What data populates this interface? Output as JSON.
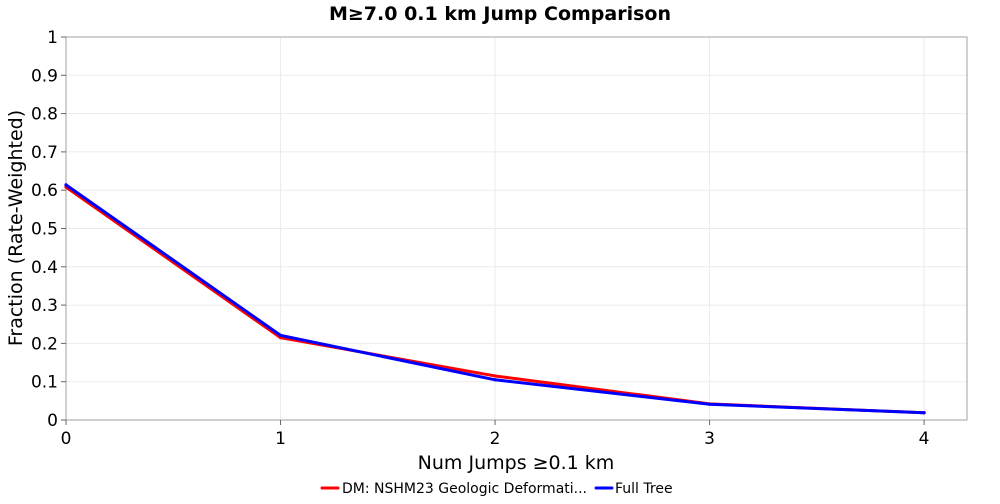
{
  "chart_data": {
    "type": "line",
    "title": "M≥7.0 0.1 km Jump Comparison",
    "xlabel": "Num Jumps ≥0.1 km",
    "ylabel": "Fraction (Rate-Weighted)",
    "xlim": [
      0,
      4.2
    ],
    "ylim": [
      0,
      1
    ],
    "xticks": [
      0,
      1,
      2,
      3,
      4
    ],
    "xtick_labels": [
      "0",
      "1",
      "2",
      "3",
      "4"
    ],
    "yticks": [
      0,
      0.1,
      0.2,
      0.3,
      0.4,
      0.5,
      0.6,
      0.7,
      0.8,
      0.9,
      1
    ],
    "ytick_labels": [
      "0",
      "0.1",
      "0.2",
      "0.3",
      "0.4",
      "0.5",
      "0.6",
      "0.7",
      "0.8",
      "0.9",
      "1"
    ],
    "grid": true,
    "legend_position": "bottom-center",
    "x": [
      0,
      1,
      2,
      3,
      4
    ],
    "series": [
      {
        "name": "DM: NSHM23 Geologic Deformati...",
        "color": "#ff0000",
        "values": [
          0.608,
          0.215,
          0.115,
          0.042,
          0.019
        ]
      },
      {
        "name": "Full Tree",
        "color": "#0000ff",
        "values": [
          0.614,
          0.221,
          0.105,
          0.041,
          0.019
        ]
      }
    ]
  }
}
